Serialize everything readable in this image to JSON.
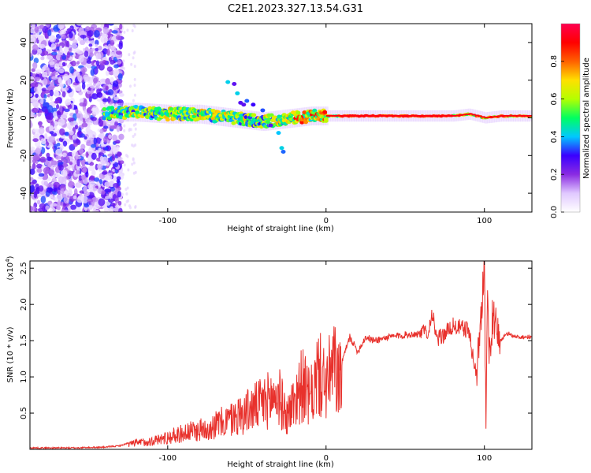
{
  "figure": {
    "title": "C2E1.2023.327.13.54.G31"
  },
  "chart_data": [
    {
      "type": "heatmap",
      "name": "spectrogram",
      "xlabel": "Height of straight line (km)",
      "ylabel": "Frequency (Hz)",
      "xlim": [
        -187,
        130
      ],
      "ylim": [
        -50,
        50
      ],
      "xticks": [
        -100,
        0,
        100
      ],
      "xtick_labels": [
        "-100",
        "0",
        "100"
      ],
      "yticks": [
        -40,
        -20,
        0,
        20,
        40
      ],
      "ytick_labels": [
        "-40",
        "-20",
        "0",
        "20",
        "40"
      ],
      "ridge": {
        "x": [
          -140,
          -130,
          -120,
          -100,
          -80,
          -60,
          -50,
          -40,
          -30,
          -20,
          -10,
          0,
          20,
          40,
          60,
          80,
          90,
          100,
          110,
          130
        ],
        "frequency": [
          2,
          3,
          3,
          2,
          2,
          0,
          -1,
          -2,
          -1,
          0,
          1,
          1,
          1,
          1,
          1,
          1,
          2,
          0,
          1,
          1
        ]
      },
      "colorbar": {
        "label": "Normalized spectral amplitude",
        "range": [
          0,
          1
        ],
        "ticks": [
          0.0,
          0.2,
          0.4,
          0.6,
          0.8
        ],
        "tick_labels": [
          "0.0",
          "0.2",
          "0.4",
          "0.6",
          "0.8"
        ],
        "colors": [
          "#ffffff",
          "#e0c8ff",
          "#8a2be2",
          "#3a00ff",
          "#00c8ff",
          "#00ff60",
          "#b4ff00",
          "#ffe000",
          "#ff6000",
          "#ff0000",
          "#ff0050"
        ]
      }
    },
    {
      "type": "line",
      "name": "snr",
      "xlabel": "Height of straight line (km)",
      "ylabel": "SNR (10 * v/v)",
      "scale_note": "(x10",
      "scale_exp": "4",
      "scale_close": ")",
      "xlim": [
        -187,
        130
      ],
      "ylim": [
        0,
        2.6
      ],
      "xticks": [
        -100,
        0,
        100
      ],
      "xtick_labels": [
        "-100",
        "0",
        "100"
      ],
      "yticks": [
        0.5,
        1.0,
        1.5,
        2.0,
        2.5
      ],
      "ytick_labels": [
        "0.5",
        "1.0",
        "1.5",
        "2.0",
        "2.5"
      ],
      "color": "#e8312c",
      "series": [
        {
          "x": [
            -187,
            -160,
            -140,
            -130,
            -120,
            -110,
            -100,
            -90,
            -80,
            -70,
            -60,
            -50,
            -40,
            -30,
            -25,
            -20,
            -15,
            -10,
            -5,
            0,
            5,
            10,
            15,
            20,
            25,
            30,
            40,
            50,
            60,
            65,
            67,
            70,
            80,
            90,
            95,
            98,
            100,
            101,
            102,
            103,
            105,
            110,
            115,
            120,
            130
          ],
          "values": [
            0.02,
            0.02,
            0.03,
            0.05,
            0.12,
            0.15,
            0.22,
            0.3,
            0.35,
            0.45,
            0.55,
            0.7,
            0.85,
            1.0,
            0.6,
            0.9,
            1.2,
            0.9,
            1.4,
            1.2,
            1.5,
            1.2,
            1.55,
            1.35,
            1.55,
            1.5,
            1.55,
            1.58,
            1.6,
            1.65,
            1.9,
            1.5,
            1.7,
            1.65,
            1.0,
            1.9,
            2.6,
            0.3,
            2.3,
            1.2,
            1.8,
            1.5,
            1.6,
            1.55,
            1.55
          ]
        }
      ]
    }
  ]
}
